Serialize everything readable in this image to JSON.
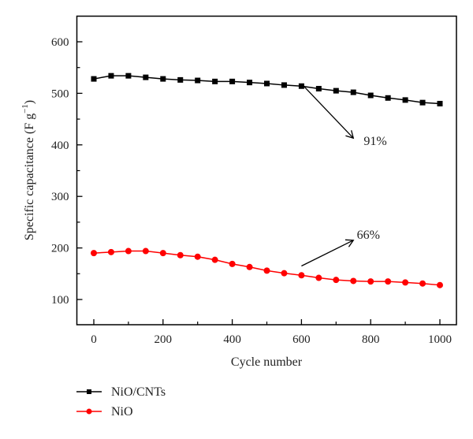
{
  "chart_data": {
    "type": "line",
    "title": "",
    "xlabel": "Cycle number",
    "ylabel_main": "Specific capacitance (F g",
    "ylabel_sup": "−1",
    "ylabel_close": ")",
    "xlim": [
      -50,
      1050
    ],
    "ylim": [
      50,
      650
    ],
    "xticks": [
      0,
      200,
      400,
      600,
      800,
      1000
    ],
    "xticks_minor": [
      100,
      300,
      500,
      700,
      900
    ],
    "xtick_labels": [
      "0",
      "200",
      "400",
      "600",
      "800",
      "1000"
    ],
    "yticks": [
      100,
      200,
      300,
      400,
      500,
      600
    ],
    "yticks_minor": [
      150,
      250,
      350,
      450,
      550
    ],
    "ytick_labels": [
      "100",
      "200",
      "300",
      "400",
      "500",
      "600"
    ],
    "grid": false,
    "legend_position": "bottom-left (below plot)",
    "x": [
      0,
      50,
      100,
      150,
      200,
      250,
      300,
      350,
      400,
      450,
      500,
      550,
      600,
      650,
      700,
      750,
      800,
      850,
      900,
      950,
      1000
    ],
    "series": [
      {
        "name": "NiO/CNTs",
        "color": "#000000",
        "marker": "square",
        "values": [
          528,
          534,
          534,
          531,
          528,
          526,
          525,
          523,
          523,
          521,
          519,
          516,
          514,
          509,
          505,
          502,
          496,
          491,
          487,
          482,
          480
        ]
      },
      {
        "name": "NiO",
        "color": "#ff0000",
        "marker": "circle",
        "values": [
          190,
          192,
          194,
          194,
          190,
          186,
          183,
          177,
          169,
          163,
          156,
          151,
          147,
          142,
          138,
          136,
          135,
          135,
          133,
          131,
          128
        ]
      }
    ],
    "annotations": [
      {
        "text": "91%",
        "arrow_from": [
          605,
          515
        ],
        "arrow_to": [
          750,
          413
        ],
        "label_at": [
          780,
          400
        ]
      },
      {
        "text": "66%",
        "arrow_from": [
          600,
          165
        ],
        "arrow_to": [
          750,
          215
        ],
        "label_at": [
          760,
          218
        ]
      }
    ]
  }
}
